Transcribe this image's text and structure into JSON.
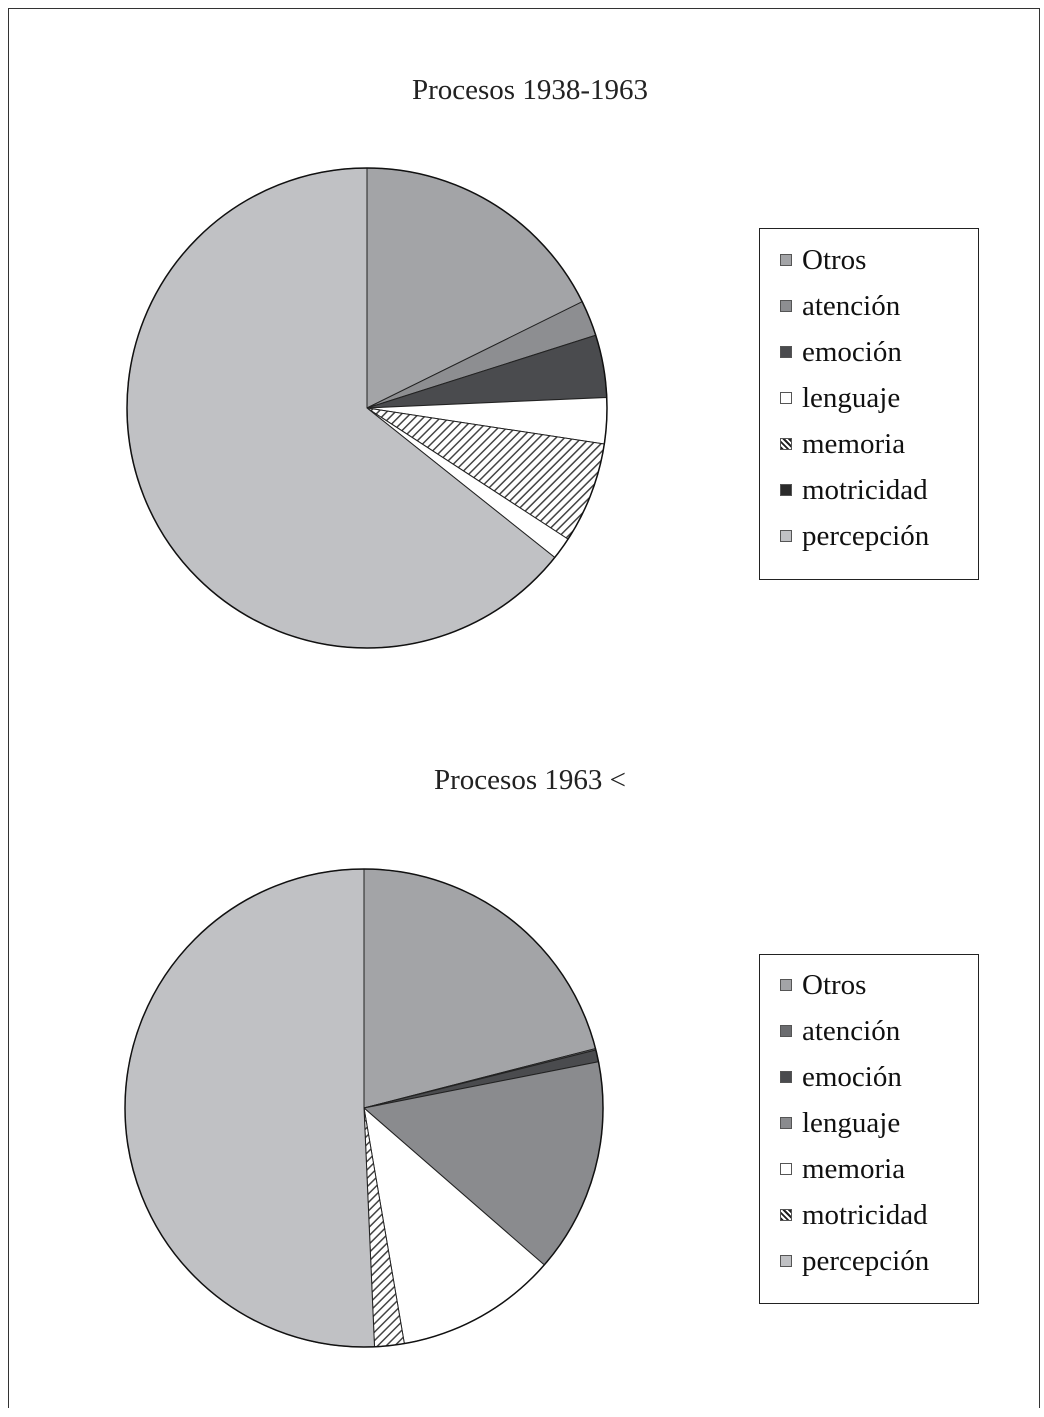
{
  "chart_data": [
    {
      "type": "pie",
      "title": "Procesos 1938-1963",
      "legend_placement": "right",
      "slices": [
        {
          "label": "Otros",
          "value": 17.7,
          "color": "#a3a4a7",
          "pattern": "none"
        },
        {
          "label": "atención",
          "value": 2.4,
          "color": "#8d8e91",
          "pattern": "none"
        },
        {
          "label": "emoción",
          "value": 4.2,
          "color": "#4a4b4e",
          "pattern": "none"
        },
        {
          "label": "lenguaje",
          "value": 3.1,
          "color": "#ffffff",
          "pattern": "none"
        },
        {
          "label": "memoria",
          "value": 6.8,
          "color": "#ffffff",
          "pattern": "diagonal"
        },
        {
          "label": "motricidad",
          "value": 1.5,
          "color": "#ffffff",
          "pattern": "none"
        },
        {
          "label": "percepción",
          "value": 64.3,
          "color": "#c0c1c4",
          "pattern": "none"
        }
      ],
      "legend_swatches": [
        "#a3a4a7",
        "#8d8e91",
        "#4a4b4e",
        "#ffffff",
        "#555555",
        "#2a2a2a",
        "#c0c1c4"
      ]
    },
    {
      "type": "pie",
      "title": "Procesos 1963 <",
      "legend_placement": "right",
      "slices": [
        {
          "label": "Otros",
          "value": 21.0,
          "color": "#a3a4a7",
          "pattern": "none"
        },
        {
          "label": "atención",
          "value": 0.1,
          "color": "#6b6c6f",
          "pattern": "none"
        },
        {
          "label": "emoción",
          "value": 0.8,
          "color": "#4a4b4e",
          "pattern": "none"
        },
        {
          "label": "lenguaje",
          "value": 14.5,
          "color": "#8a8b8e",
          "pattern": "none"
        },
        {
          "label": "memoria",
          "value": 10.9,
          "color": "#ffffff",
          "pattern": "none"
        },
        {
          "label": "motricidad",
          "value": 2.0,
          "color": "#ffffff",
          "pattern": "diagonal"
        },
        {
          "label": "percepción",
          "value": 50.7,
          "color": "#c0c1c4",
          "pattern": "none"
        }
      ],
      "legend_swatches": [
        "#a3a4a7",
        "#6b6c6f",
        "#4a4b4e",
        "#8a8b8e",
        "#ffffff",
        "#555555",
        "#c0c1c4"
      ]
    }
  ]
}
